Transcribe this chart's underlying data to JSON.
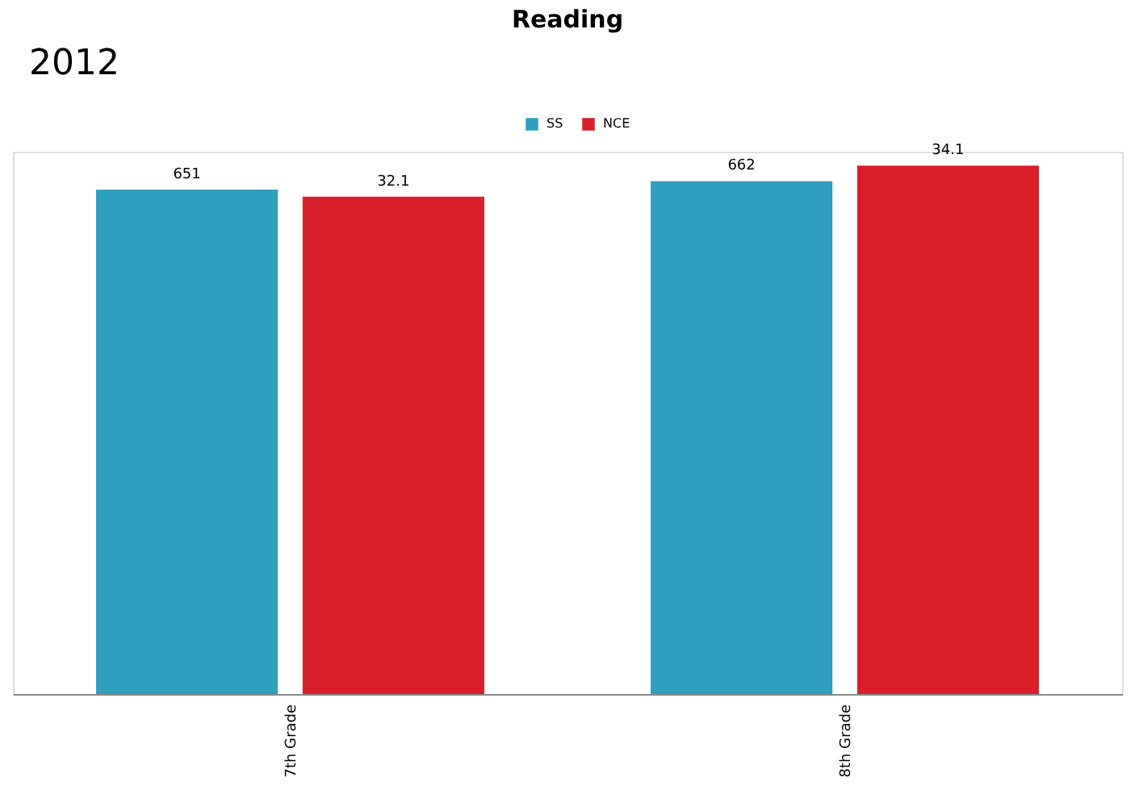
{
  "chart_data": {
    "type": "bar",
    "title": "Reading",
    "annotations": [
      "2012"
    ],
    "categories": [
      "7th Grade",
      "8th Grade"
    ],
    "series": [
      {
        "name": "SS",
        "color": "#2e9fbf",
        "values": [
          651,
          662
        ]
      },
      {
        "name": "NCE",
        "color": "#d91f2a",
        "values": [
          32.1,
          34.1
        ],
        "axis": "y2"
      }
    ],
    "data_labels": true,
    "legend": "top",
    "tick_labels": "x"
  }
}
